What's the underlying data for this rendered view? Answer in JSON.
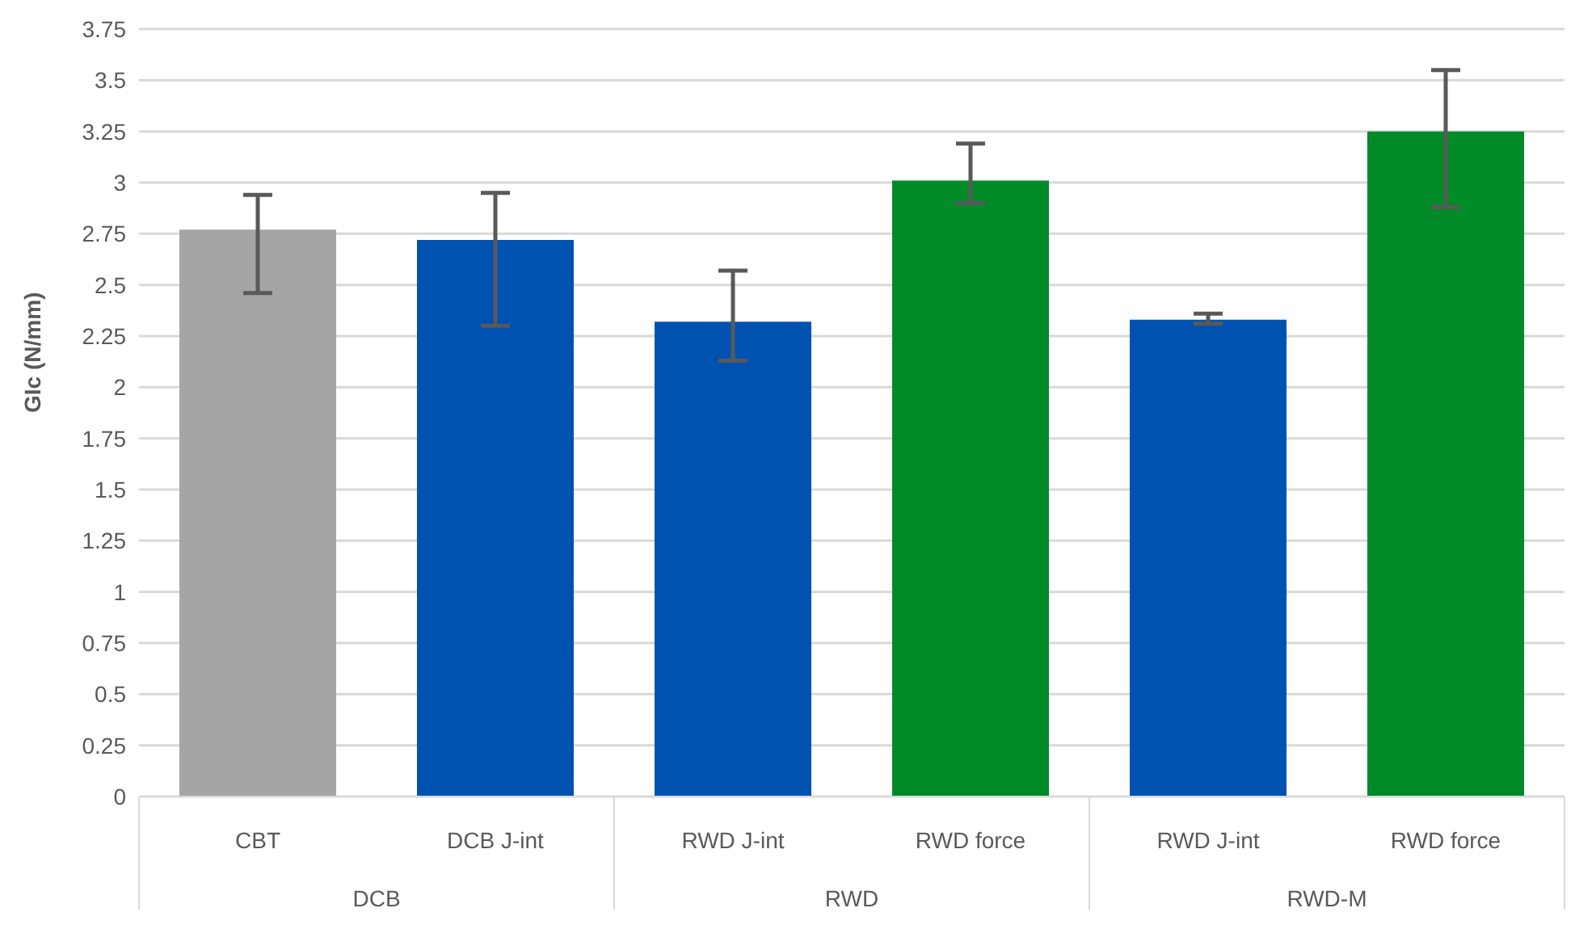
{
  "chart_data": {
    "type": "bar",
    "ylabel": "GIc (N/mm)",
    "categories": [
      "CBT",
      "DCB J-int",
      "RWD J-int",
      "RWD force",
      "RWD J-int",
      "RWD force"
    ],
    "values": [
      2.77,
      2.72,
      2.32,
      3.01,
      2.33,
      3.25
    ],
    "colors": [
      "#a5a5a5",
      "#0052b0",
      "#0052b0",
      "#008a28",
      "#0052b0",
      "#008a28"
    ],
    "errors": [
      [
        2.46,
        2.94
      ],
      [
        2.3,
        2.95
      ],
      [
        2.13,
        2.57
      ],
      [
        2.9,
        3.19
      ],
      [
        2.31,
        2.36
      ],
      [
        2.88,
        3.55
      ]
    ],
    "annotations": [
      "DCB",
      "RWD",
      "RWD-M"
    ],
    "ylim": [
      0,
      3.75
    ],
    "yticks": [
      0,
      0.25,
      0.5,
      0.75,
      1,
      1.25,
      1.5,
      1.75,
      2,
      2.25,
      2.5,
      2.75,
      3,
      3.25,
      3.5,
      3.75
    ],
    "grid": "y"
  }
}
